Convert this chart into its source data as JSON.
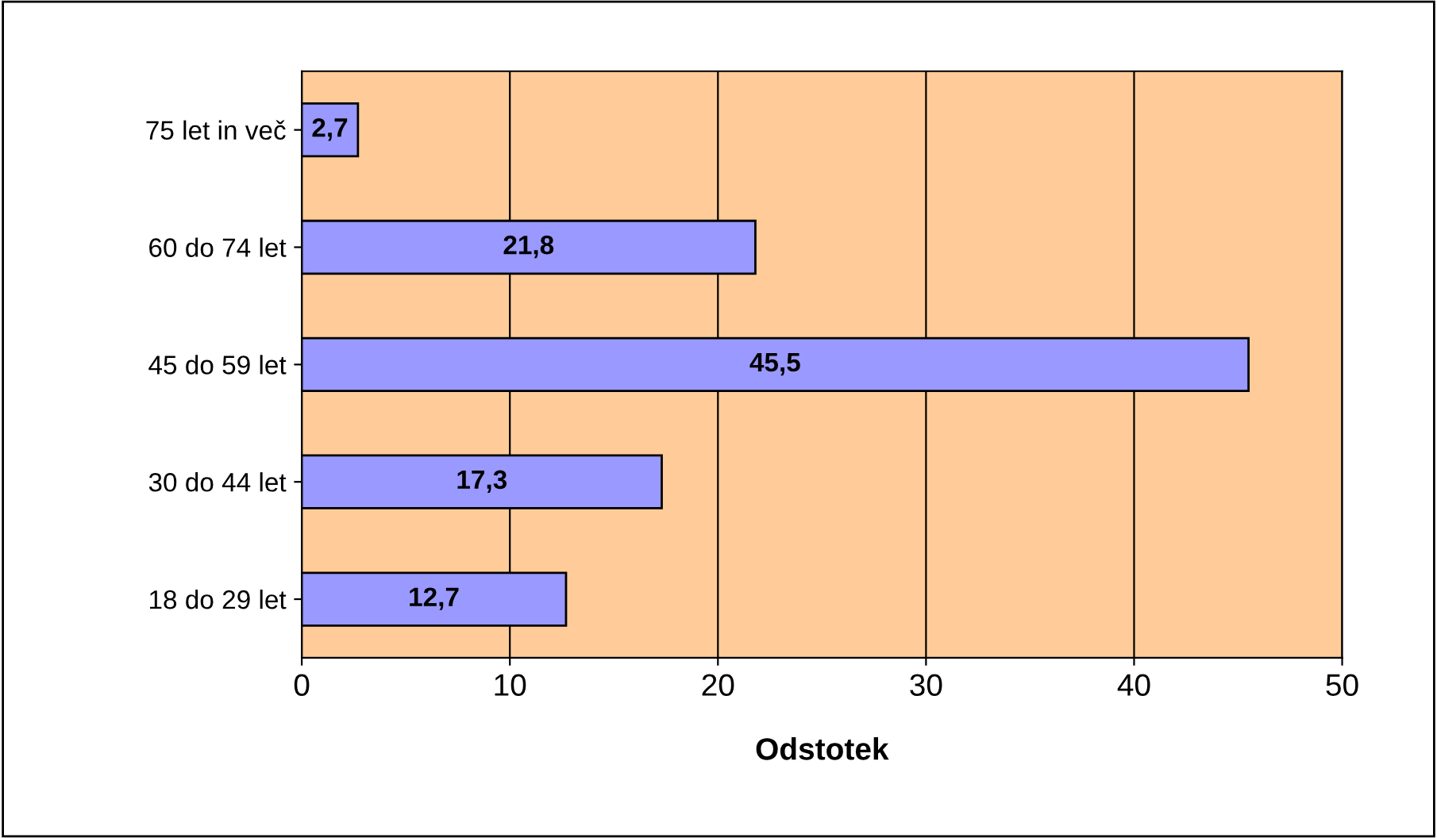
{
  "chart_data": {
    "type": "bar",
    "orientation": "horizontal",
    "xlabel": "Odstotek",
    "categories": [
      "75 let in več",
      "60 do 74 let",
      "45 do 59 let",
      "30 do 44 let",
      "18 do 29 let"
    ],
    "values": [
      2.7,
      21.8,
      45.5,
      17.3,
      12.7
    ],
    "value_labels": [
      "2,7",
      "21,8",
      "45,5",
      "17,3",
      "12,7"
    ],
    "color": "#9999ff",
    "xlim": [
      0,
      50
    ],
    "xticks": [
      0,
      10,
      20,
      30,
      40,
      50
    ],
    "grid": "x"
  }
}
